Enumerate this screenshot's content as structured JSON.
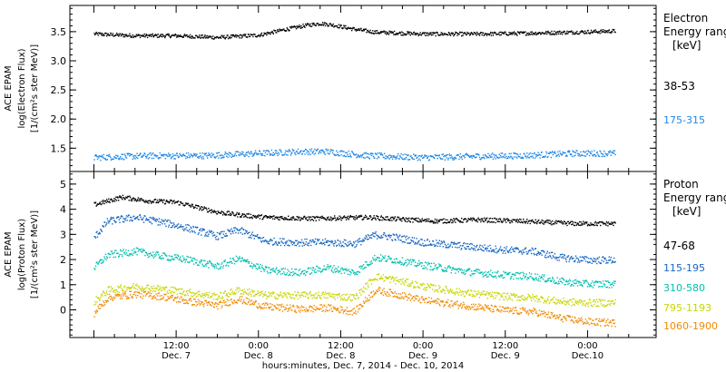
{
  "chart_data": [
    {
      "type": "scatter",
      "panel": "electron",
      "ylabel": [
        "ACE EPAM",
        "log(Electron Flux)",
        "[1/(cm²s ster MeV)]"
      ],
      "ylim": [
        1.1,
        3.95
      ],
      "yticks": [
        1.5,
        2.0,
        2.5,
        3.0,
        3.5
      ],
      "ytick_labels": [
        "1.5",
        "2.0",
        "2.5",
        "3.0",
        "3.5"
      ],
      "legend_title": [
        "Electron",
        "Energy ranges",
        "[keV]"
      ],
      "series": [
        {
          "name": "38-53",
          "color": "#000000",
          "points": [
            [
              0,
              3.47
            ],
            [
              6,
              3.44
            ],
            [
              12,
              3.44
            ],
            [
              18,
              3.41
            ],
            [
              24,
              3.45
            ],
            [
              28,
              3.55
            ],
            [
              31,
              3.62
            ],
            [
              33,
              3.65
            ],
            [
              35,
              3.62
            ],
            [
              38,
              3.55
            ],
            [
              41,
              3.5
            ],
            [
              48,
              3.47
            ],
            [
              56,
              3.47
            ],
            [
              62,
              3.48
            ],
            [
              70,
              3.5
            ],
            [
              76,
              3.52
            ]
          ]
        },
        {
          "name": "175-315",
          "color": "#1e88e5",
          "points": [
            [
              0,
              1.35
            ],
            [
              8,
              1.38
            ],
            [
              16,
              1.38
            ],
            [
              24,
              1.42
            ],
            [
              30,
              1.45
            ],
            [
              34,
              1.45
            ],
            [
              40,
              1.38
            ],
            [
              48,
              1.35
            ],
            [
              56,
              1.37
            ],
            [
              62,
              1.38
            ],
            [
              70,
              1.42
            ],
            [
              76,
              1.42
            ]
          ]
        }
      ]
    },
    {
      "type": "scatter",
      "panel": "proton",
      "ylabel": [
        "ACE EPAM",
        "log(Proton Flux)",
        "[1/(cm²s ster MeV)]"
      ],
      "ylim": [
        -1.1,
        5.5
      ],
      "yticks": [
        0,
        1,
        2,
        3,
        4,
        5
      ],
      "ytick_labels": [
        "0",
        "1",
        "2",
        "3",
        "4",
        "5"
      ],
      "legend_title": [
        "Proton",
        "Energy ranges",
        "[keV]"
      ],
      "series": [
        {
          "name": "47-68",
          "color": "#000000",
          "points": [
            [
              0,
              4.2
            ],
            [
              4,
              4.5
            ],
            [
              8,
              4.35
            ],
            [
              12,
              4.3
            ],
            [
              15,
              4.1
            ],
            [
              18,
              3.9
            ],
            [
              21,
              3.8
            ],
            [
              25,
              3.7
            ],
            [
              32,
              3.65
            ],
            [
              40,
              3.7
            ],
            [
              46,
              3.6
            ],
            [
              50,
              3.55
            ],
            [
              56,
              3.6
            ],
            [
              62,
              3.55
            ],
            [
              70,
              3.45
            ],
            [
              76,
              3.45
            ]
          ]
        },
        {
          "name": "115-195",
          "color": "#1565c0",
          "points": [
            [
              0,
              2.9
            ],
            [
              2,
              3.55
            ],
            [
              6,
              3.7
            ],
            [
              10,
              3.5
            ],
            [
              14,
              3.25
            ],
            [
              18,
              2.95
            ],
            [
              21,
              3.2
            ],
            [
              25,
              2.75
            ],
            [
              30,
              2.7
            ],
            [
              34,
              2.7
            ],
            [
              38,
              2.65
            ],
            [
              41,
              3.0
            ],
            [
              44,
              2.9
            ],
            [
              48,
              2.7
            ],
            [
              54,
              2.55
            ],
            [
              60,
              2.4
            ],
            [
              64,
              2.35
            ],
            [
              68,
              2.1
            ],
            [
              72,
              2.0
            ],
            [
              76,
              2.0
            ]
          ]
        },
        {
          "name": "310-580",
          "color": "#00bfae",
          "points": [
            [
              0,
              1.7
            ],
            [
              2,
              2.2
            ],
            [
              6,
              2.35
            ],
            [
              10,
              2.15
            ],
            [
              14,
              2.0
            ],
            [
              18,
              1.75
            ],
            [
              21,
              2.05
            ],
            [
              25,
              1.6
            ],
            [
              30,
              1.5
            ],
            [
              34,
              1.7
            ],
            [
              38,
              1.5
            ],
            [
              41,
              2.1
            ],
            [
              44,
              2.0
            ],
            [
              48,
              1.8
            ],
            [
              54,
              1.55
            ],
            [
              60,
              1.4
            ],
            [
              64,
              1.35
            ],
            [
              68,
              1.15
            ],
            [
              72,
              1.05
            ],
            [
              76,
              1.05
            ]
          ]
        },
        {
          "name": "795-1193",
          "color": "#c6d600",
          "points": [
            [
              0,
              0.35
            ],
            [
              2,
              0.8
            ],
            [
              6,
              0.95
            ],
            [
              10,
              0.85
            ],
            [
              14,
              0.7
            ],
            [
              18,
              0.55
            ],
            [
              21,
              0.8
            ],
            [
              25,
              0.6
            ],
            [
              30,
              0.6
            ],
            [
              34,
              0.6
            ],
            [
              38,
              0.5
            ],
            [
              41,
              1.35
            ],
            [
              44,
              1.2
            ],
            [
              48,
              0.95
            ],
            [
              54,
              0.7
            ],
            [
              60,
              0.55
            ],
            [
              64,
              0.5
            ],
            [
              68,
              0.35
            ],
            [
              72,
              0.3
            ],
            [
              76,
              0.3
            ]
          ]
        },
        {
          "name": "1060-1900",
          "color": "#f08a00",
          "points": [
            [
              0,
              -0.1
            ],
            [
              2,
              0.5
            ],
            [
              6,
              0.65
            ],
            [
              10,
              0.55
            ],
            [
              14,
              0.35
            ],
            [
              18,
              0.2
            ],
            [
              21,
              0.45
            ],
            [
              25,
              0.15
            ],
            [
              30,
              0.05
            ],
            [
              34,
              0.1
            ],
            [
              38,
              -0.05
            ],
            [
              41,
              0.8
            ],
            [
              44,
              0.65
            ],
            [
              48,
              0.4
            ],
            [
              54,
              0.2
            ],
            [
              60,
              0.0
            ],
            [
              64,
              -0.05
            ],
            [
              68,
              -0.3
            ],
            [
              72,
              -0.45
            ],
            [
              76,
              -0.5
            ]
          ]
        }
      ]
    }
  ],
  "x_axis": {
    "xlim": [
      -3.5,
      82
    ],
    "major_ticks": [
      12,
      24,
      36,
      48,
      60,
      72
    ],
    "tick_labels": [
      {
        "x": 12,
        "time": "12:00",
        "day": "Dec. 7"
      },
      {
        "x": 24,
        "time": "0:00",
        "day": "Dec. 8"
      },
      {
        "x": 36,
        "time": "12:00",
        "day": "Dec. 8"
      },
      {
        "x": 48,
        "time": "0:00",
        "day": "Dec. 9"
      },
      {
        "x": 60,
        "time": "12:00",
        "day": "Dec. 9"
      },
      {
        "x": 72,
        "time": "0:00",
        "day": "Dec.10"
      }
    ],
    "xlabel": "hours:minutes, Dec. 7, 2014 - Dec. 10, 2014"
  },
  "grid": false
}
